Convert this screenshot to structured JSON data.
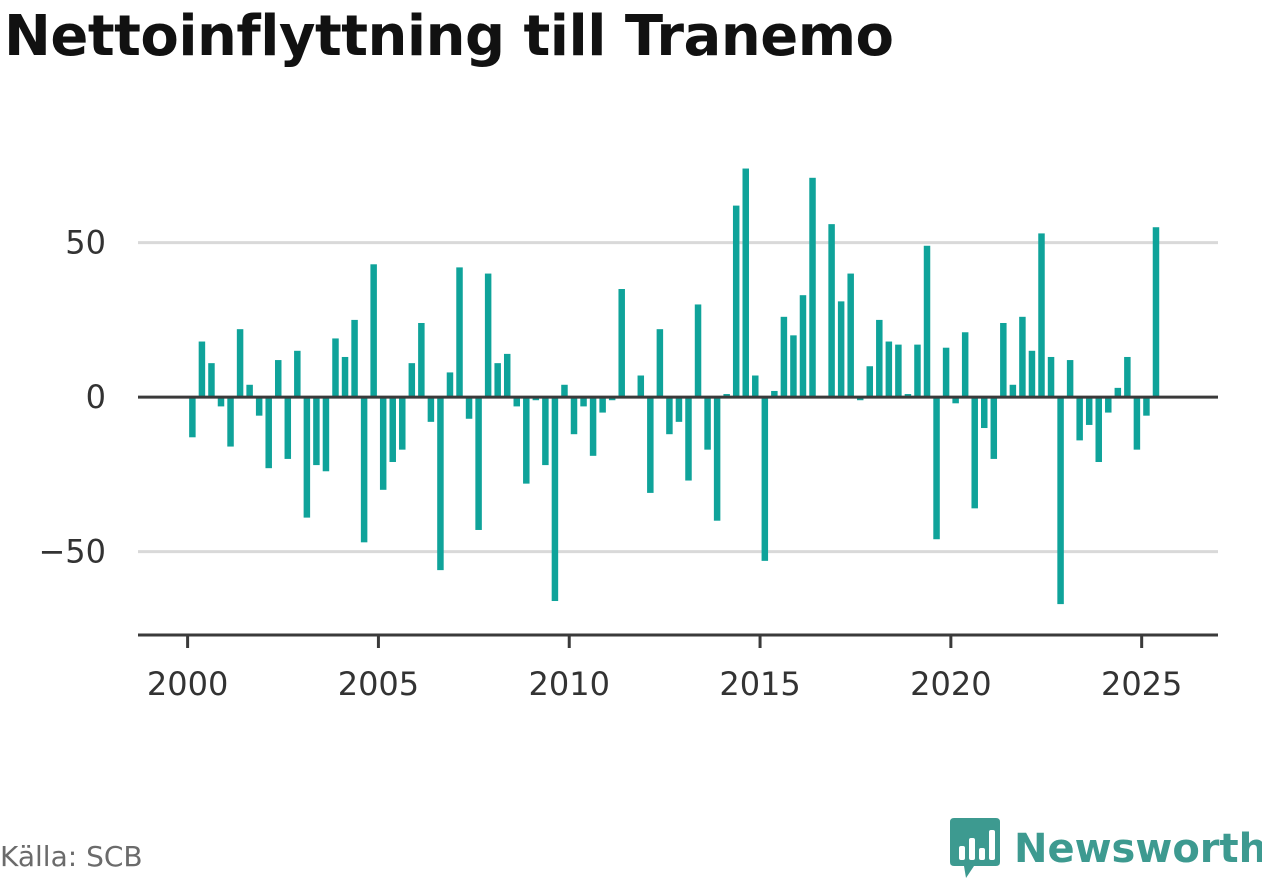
{
  "chart_data": {
    "type": "bar",
    "title": "Nettoinflyttning till Tranemo",
    "source": "Källa: SCB",
    "brand": "Newsworthy",
    "bar_color": "#0fa39a",
    "brand_color": "#3d9a90",
    "grid": true,
    "xlabel": "",
    "ylabel": "",
    "xlim": [
      1998.7,
      2027.0
    ],
    "ylim": [
      -77,
      80
    ],
    "x_ticks": [
      "2000",
      "2005",
      "2010",
      "2015",
      "2020",
      "2025"
    ],
    "y_ticks": [
      "50",
      "0",
      "−50"
    ],
    "x": [
      2000.125,
      2000.375,
      2000.625,
      2000.875,
      2001.125,
      2001.375,
      2001.625,
      2001.875,
      2002.125,
      2002.375,
      2002.625,
      2002.875,
      2003.125,
      2003.375,
      2003.625,
      2003.875,
      2004.125,
      2004.375,
      2004.625,
      2004.875,
      2005.125,
      2005.375,
      2005.625,
      2005.875,
      2006.125,
      2006.375,
      2006.625,
      2006.875,
      2007.125,
      2007.375,
      2007.625,
      2007.875,
      2008.125,
      2008.375,
      2008.625,
      2008.875,
      2009.125,
      2009.375,
      2009.625,
      2009.875,
      2010.125,
      2010.375,
      2010.625,
      2010.875,
      2011.125,
      2011.375,
      2011.625,
      2011.875,
      2012.125,
      2012.375,
      2012.625,
      2012.875,
      2013.125,
      2013.375,
      2013.625,
      2013.875,
      2014.125,
      2014.375,
      2014.625,
      2014.875,
      2015.125,
      2015.375,
      2015.625,
      2015.875,
      2016.125,
      2016.375,
      2016.625,
      2016.875,
      2017.125,
      2017.375,
      2017.625,
      2017.875,
      2018.125,
      2018.375,
      2018.625,
      2018.875,
      2019.125,
      2019.375,
      2019.625,
      2019.875,
      2020.125,
      2020.375,
      2020.625,
      2020.875,
      2021.125,
      2021.375,
      2021.625,
      2021.875,
      2022.125,
      2022.375,
      2022.625,
      2022.875,
      2023.125,
      2023.375,
      2023.625,
      2023.875,
      2024.125,
      2024.375,
      2024.625,
      2024.875,
      2025.125,
      2025.375
    ],
    "values": [
      -13,
      18,
      11,
      -3,
      -16,
      22,
      4,
      -6,
      -23,
      12,
      -20,
      15,
      -39,
      -22,
      -24,
      19,
      13,
      25,
      -47,
      43,
      -30,
      -21,
      -17,
      11,
      24,
      -8,
      -56,
      8,
      42,
      -7,
      -43,
      40,
      11,
      14,
      -3,
      -28,
      -1,
      -22,
      -66,
      4,
      -12,
      -3,
      -19,
      -5,
      -1,
      35,
      0,
      7,
      -31,
      22,
      -12,
      -8,
      -27,
      30,
      -17,
      -40,
      1,
      62,
      74,
      7,
      -53,
      2,
      26,
      20,
      33,
      71,
      0,
      56,
      31,
      40,
      -1,
      10,
      25,
      18,
      17,
      1,
      17,
      49,
      -46,
      16,
      -2,
      21,
      -36,
      -10,
      -20,
      24,
      4,
      26,
      15,
      53,
      13,
      -67,
      12,
      -14,
      -9,
      -21,
      -5,
      3,
      13,
      -17,
      -6,
      55
    ]
  }
}
